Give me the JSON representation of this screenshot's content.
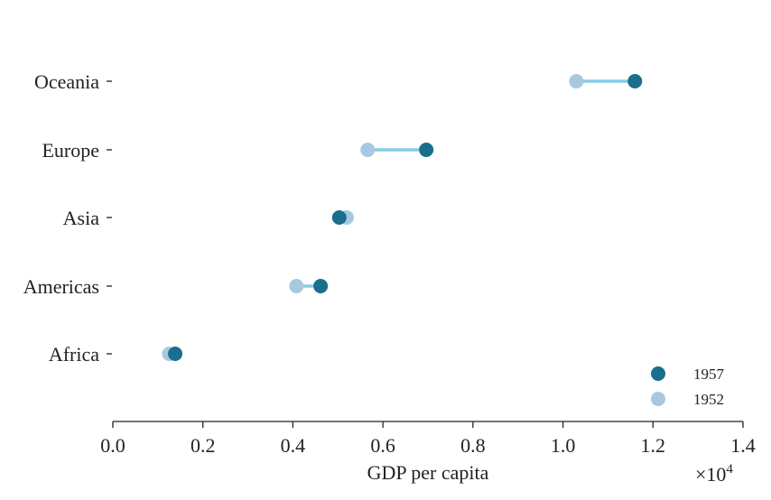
{
  "chart_data": {
    "type": "dumbbell",
    "title": "",
    "xlabel": "GDP per capita",
    "ylabel": "",
    "x_multiplier_label": "×10",
    "x_multiplier_exponent": "4",
    "xlim": [
      0,
      14000
    ],
    "x_ticks": [
      0,
      2000,
      4000,
      6000,
      8000,
      10000,
      12000,
      14000
    ],
    "x_tick_labels": [
      "0.0",
      "0.2",
      "0.4",
      "0.6",
      "0.8",
      "1.0",
      "1.2",
      "1.4"
    ],
    "categories": [
      "Africa",
      "Americas",
      "Asia",
      "Europe",
      "Oceania"
    ],
    "series": [
      {
        "name": "1957",
        "color": "#1a6e8e",
        "values": [
          1385,
          4616,
          5030,
          6963,
          11599
        ]
      },
      {
        "name": "1952",
        "color": "#a8c8e0",
        "values": [
          1253,
          4079,
          5195,
          5661,
          10298
        ]
      }
    ],
    "connector_color": "#87cbe6",
    "legend_position": "lower-right",
    "grid": false
  }
}
